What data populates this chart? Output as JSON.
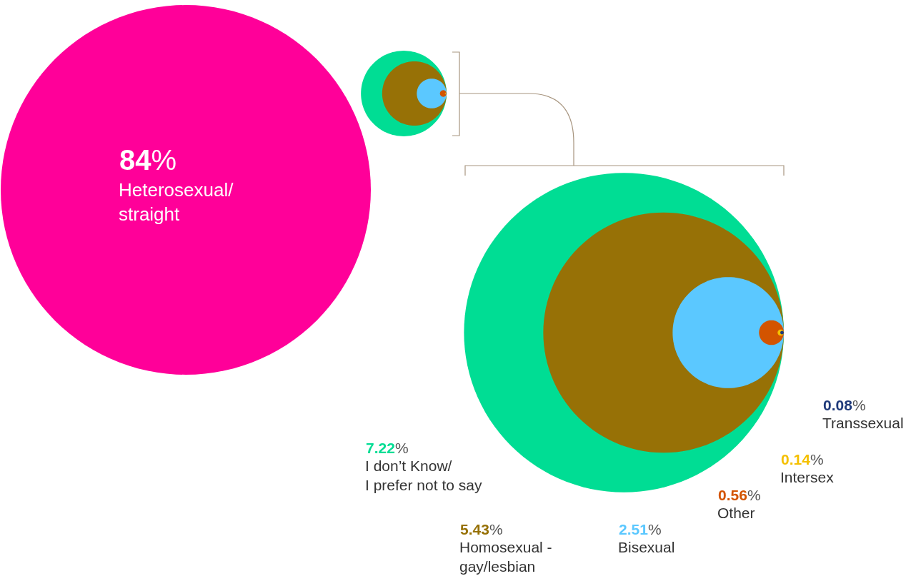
{
  "chart_data": {
    "type": "other",
    "categories": [
      "Heterosexual/ straight",
      "I don’t Know/ I prefer not to say",
      "Homosexual - gay/lesbian",
      "Bisexual",
      "Other",
      "Intersex",
      "Transsexual"
    ],
    "values": [
      84,
      7.22,
      5.43,
      2.51,
      0.56,
      0.14,
      0.08
    ],
    "value_labels": [
      "84%",
      "7.22%",
      "5.43%",
      "2.51%",
      "0.56%",
      "0.14%",
      "0.08%"
    ],
    "colors": [
      "#ff0099",
      "#00dd94",
      "#977106",
      "#5bc8ff",
      "#d35400",
      "#f5c000",
      "#1f3a7a"
    ]
  }
}
